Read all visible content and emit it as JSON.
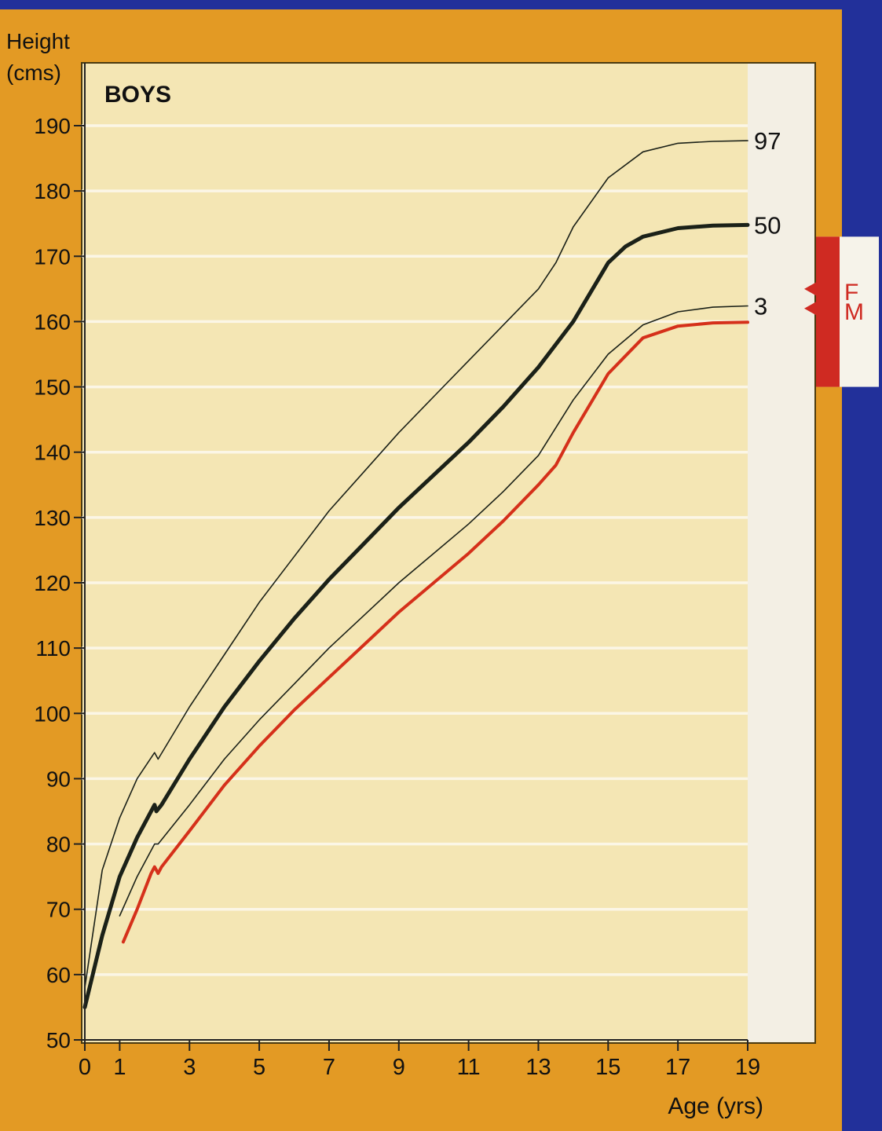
{
  "colors": {
    "background_blue": "#22309a",
    "frame_orange": "#e39a24",
    "plot_cream": "#f4e6b4",
    "label_panel": "#f3efe4",
    "gridline": "#fbf6e6",
    "curve_dark": "#1b2118",
    "curve_red": "#d5301a",
    "marker_red": "#cf2a22"
  },
  "chart_data": {
    "type": "line",
    "title": "BOYS",
    "ylabel": "Height\n(cms)",
    "xlabel": "Age (yrs)",
    "xlim": [
      0,
      19
    ],
    "ylim": [
      50,
      190
    ],
    "x_ticks": [
      0,
      1,
      3,
      5,
      7,
      9,
      11,
      13,
      15,
      17,
      19
    ],
    "y_ticks": [
      50,
      60,
      70,
      80,
      90,
      100,
      110,
      120,
      130,
      140,
      150,
      160,
      170,
      180,
      190
    ],
    "grid": true,
    "series": [
      {
        "name": "97",
        "color": "#1b2118",
        "style": "thin",
        "x": [
          0,
          0.5,
          1,
          1.5,
          2,
          2.1,
          3,
          4,
          5,
          6,
          7,
          8,
          9,
          10,
          11,
          12,
          13,
          13.5,
          14,
          15,
          16,
          17,
          18,
          19
        ],
        "y": [
          58,
          76,
          84,
          90,
          94,
          93,
          101,
          109,
          117,
          124,
          131,
          137,
          143,
          148.5,
          154,
          159.5,
          165,
          169,
          174.5,
          182,
          186,
          187.3,
          187.6,
          187.7
        ]
      },
      {
        "name": "50",
        "color": "#1b2118",
        "style": "thick",
        "x": [
          0,
          0.5,
          1,
          1.5,
          2,
          2.05,
          2.2,
          3,
          4,
          5,
          6,
          7,
          8,
          9,
          10,
          11,
          12,
          13,
          14,
          15,
          15.5,
          16,
          17,
          18,
          19
        ],
        "y": [
          55,
          66,
          75,
          81,
          86,
          85,
          86,
          93,
          101,
          108,
          114.5,
          120.5,
          126,
          131.5,
          136.5,
          141.5,
          147,
          153,
          160,
          169,
          171.5,
          173,
          174.3,
          174.7,
          174.8
        ]
      },
      {
        "name": "3",
        "color": "#1b2118",
        "style": "thin",
        "x": [
          1,
          1.5,
          2,
          2.1,
          3,
          4,
          5,
          6,
          7,
          8,
          9,
          10,
          11,
          12,
          13,
          14,
          15,
          16,
          17,
          18,
          19
        ],
        "y": [
          69,
          75,
          80,
          80,
          86,
          93,
          99,
          104.5,
          110,
          115,
          120,
          124.5,
          129,
          134,
          139.5,
          148,
          155,
          159.5,
          161.5,
          162.2,
          162.4
        ]
      },
      {
        "color": "#d5301a",
        "style": "red",
        "x": [
          1.1,
          1.5,
          1.9,
          2.0,
          2.1,
          2.2,
          3,
          4,
          5,
          6,
          7,
          8,
          9,
          10,
          11,
          12,
          13,
          13.5,
          14,
          15,
          16,
          17,
          18,
          19
        ],
        "y": [
          65,
          70,
          75.5,
          76.5,
          75.5,
          76.5,
          82,
          89,
          95,
          100.5,
          105.5,
          110.5,
          115.5,
          120,
          124.5,
          129.5,
          135,
          138,
          143,
          152,
          157.5,
          159.3,
          159.8,
          159.9
        ]
      }
    ],
    "parent_height_markers": {
      "labels": [
        "F",
        "M"
      ],
      "values": [
        165,
        162
      ],
      "range": [
        150,
        173
      ]
    }
  }
}
